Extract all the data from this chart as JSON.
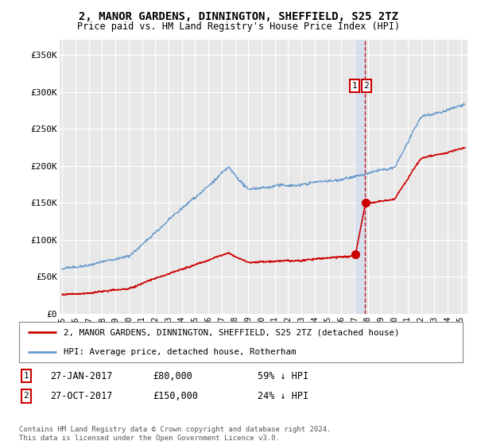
{
  "title": "2, MANOR GARDENS, DINNINGTON, SHEFFIELD, S25 2TZ",
  "subtitle": "Price paid vs. HM Land Registry's House Price Index (HPI)",
  "ylabel_ticks": [
    "£0",
    "£50K",
    "£100K",
    "£150K",
    "£200K",
    "£250K",
    "£300K",
    "£350K"
  ],
  "ytick_vals": [
    0,
    50000,
    100000,
    150000,
    200000,
    250000,
    300000,
    350000
  ],
  "ylim": [
    0,
    370000
  ],
  "xlim_start": 1994.8,
  "xlim_end": 2025.5,
  "t1": 2017.07,
  "t2": 2017.83,
  "price1": 80000,
  "price2": 150000,
  "transaction1": {
    "label": "1",
    "date_str": "27-JAN-2017",
    "price_str": "£80,000",
    "pct_str": "59% ↓ HPI"
  },
  "transaction2": {
    "label": "2",
    "date_str": "27-OCT-2017",
    "price_str": "£150,000",
    "pct_str": "24% ↓ HPI"
  },
  "legend_label_red": "2, MANOR GARDENS, DINNINGTON, SHEFFIELD, S25 2TZ (detached house)",
  "legend_label_blue": "HPI: Average price, detached house, Rotherham",
  "footer": "Contains HM Land Registry data © Crown copyright and database right 2024.\nThis data is licensed under the Open Government Licence v3.0.",
  "red_color": "#cc0000",
  "blue_color": "#6699cc",
  "background_color": "#e8e8e8",
  "grid_color": "#ffffff",
  "shade_color": "#c8d8f0"
}
